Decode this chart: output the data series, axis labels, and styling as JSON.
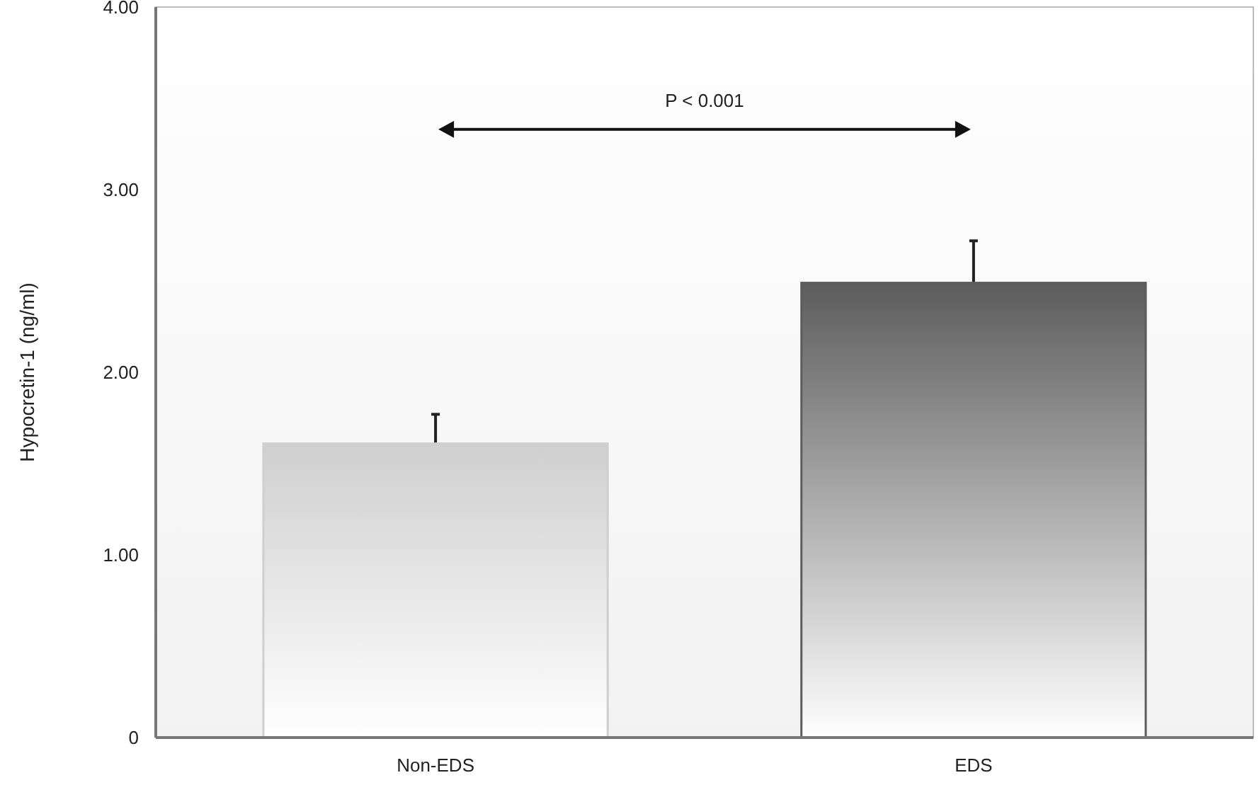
{
  "chart_data": {
    "type": "bar",
    "ylabel": "Hypocretin-1 (ng/ml)",
    "categories": [
      "Non-EDS",
      "EDS"
    ],
    "values": [
      1.61,
      2.49
    ],
    "colors": [
      "#cfcfcf",
      "#5c5c5c"
    ],
    "errors": [
      0.16,
      0.23
    ],
    "ylim": [
      0,
      4
    ],
    "yticks": [
      {
        "value": 0,
        "label": "0"
      },
      {
        "value": 1,
        "label": "1.00"
      },
      {
        "value": 2,
        "label": "2.00"
      },
      {
        "value": 3,
        "label": "3.00"
      },
      {
        "value": 4,
        "label": "4.00"
      }
    ],
    "annotations": [
      "P < 0.001"
    ]
  }
}
